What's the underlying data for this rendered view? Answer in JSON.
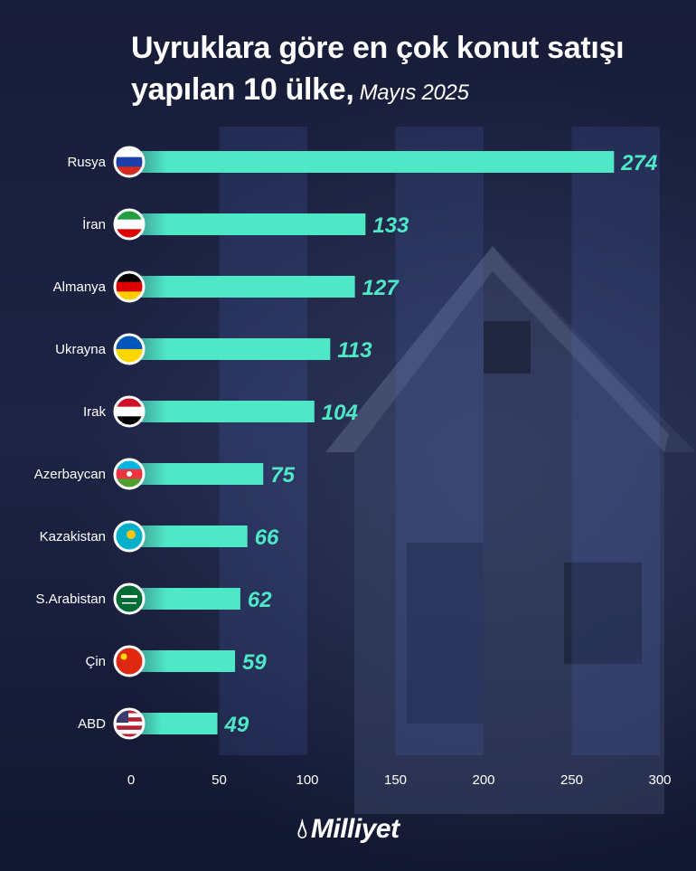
{
  "header": {
    "title": "Uyruklara göre en çok konut satışı yapılan 10 ülke,",
    "subtitle": "Mayıs 2025"
  },
  "brand": {
    "name": "Milliyet",
    "icon": "flame-drop-icon"
  },
  "colors": {
    "bar": "#4fe8c7",
    "value_text": "#4fe8c7",
    "background": "#171c38"
  },
  "chart_data": {
    "type": "bar",
    "orientation": "horizontal",
    "title": "Uyruklara göre en çok konut satışı yapılan 10 ülke,",
    "subtitle": "Mayıs 2025",
    "categories": [
      "Rusya",
      "İran",
      "Almanya",
      "Ukrayna",
      "Irak",
      "Azerbaycan",
      "Kazakistan",
      "S.Arabistan",
      "Çin",
      "ABD"
    ],
    "values": [
      274,
      133,
      127,
      113,
      104,
      75,
      66,
      62,
      59,
      49
    ],
    "flags": [
      "russia-flag-icon",
      "iran-flag-icon",
      "germany-flag-icon",
      "ukraine-flag-icon",
      "iraq-flag-icon",
      "azerbaijan-flag-icon",
      "kazakhstan-flag-icon",
      "saudi-arabia-flag-icon",
      "china-flag-icon",
      "usa-flag-icon"
    ],
    "xlim": [
      0,
      300
    ],
    "xticks": [
      0,
      50,
      100,
      150,
      200,
      250,
      300
    ],
    "xlabel": "",
    "ylabel": "",
    "grid": false,
    "legend": "none"
  }
}
